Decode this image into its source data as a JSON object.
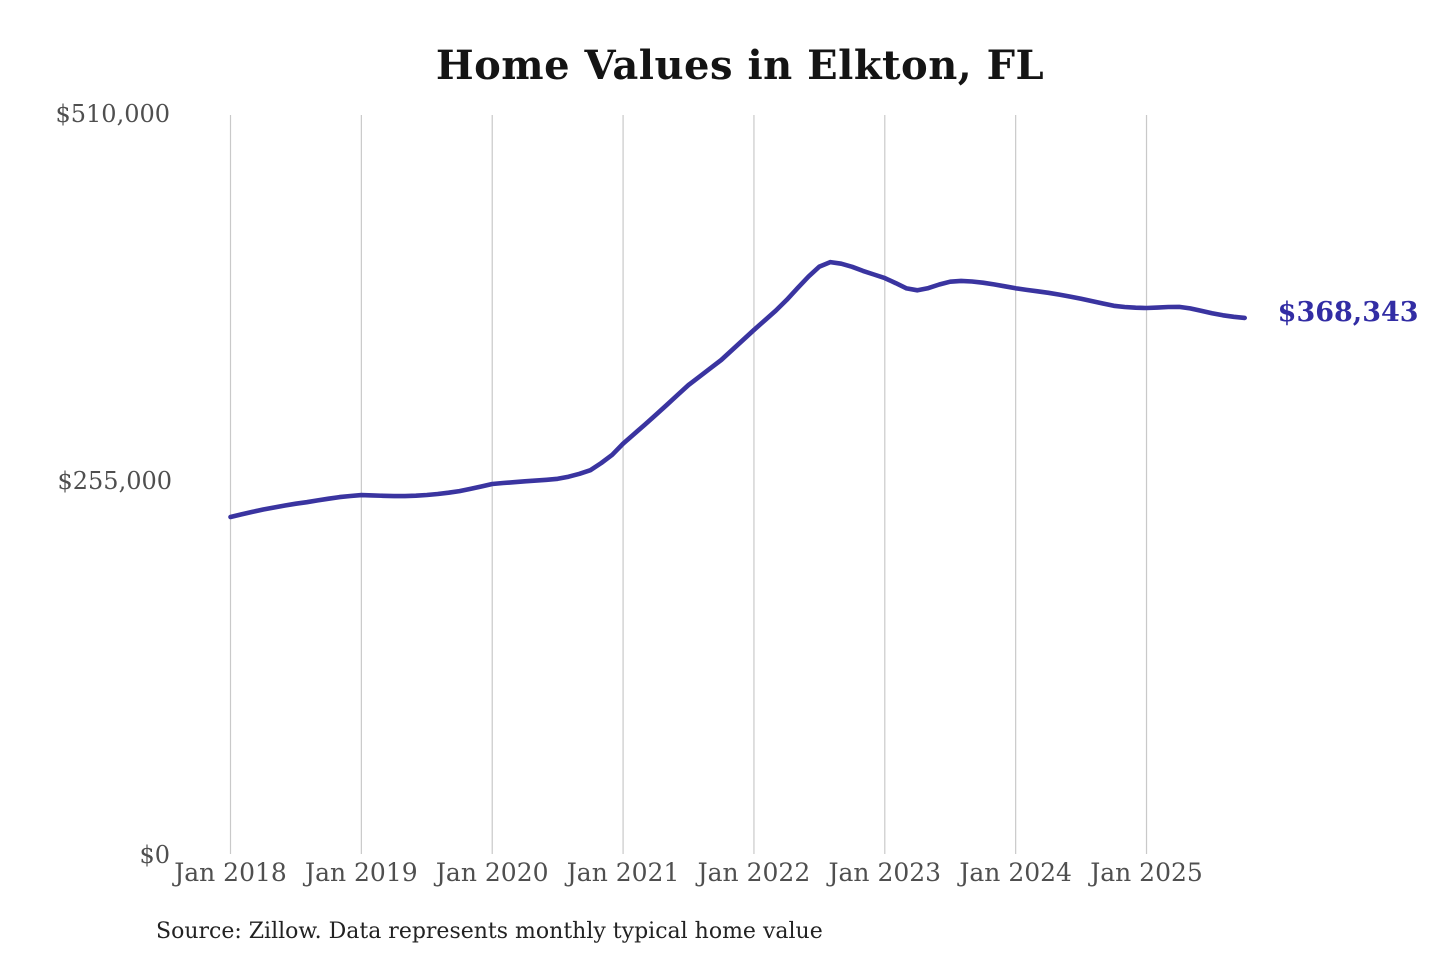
{
  "title": "Home Values in Elkton, FL",
  "source_note": "Source: Zillow. Data represents monthly typical home value",
  "colors": {
    "line": "#3a34a0",
    "end_label": "#322da4",
    "grid": "#c9c9c9",
    "axis_text": "#4f4f4f",
    "title_text": "#141414",
    "source_text": "#222222",
    "background": "#ffffff"
  },
  "chart_data": {
    "type": "line",
    "title": "Home Values in Elkton, FL",
    "unit": "USD",
    "xlabel": "",
    "ylabel": "",
    "ylim": [
      0,
      510000
    ],
    "grid": "vertical-only",
    "legend": "none",
    "x_tick_labels": [
      "Jan 2018",
      "Jan 2019",
      "Jan 2020",
      "Jan 2021",
      "Jan 2022",
      "Jan 2023",
      "Jan 2024",
      "Jan 2025"
    ],
    "y_tick_labels": [
      "$510,000",
      "$255,000",
      "$0"
    ],
    "y_tick_values": [
      510000,
      255000,
      0
    ],
    "end_label": "$368,343",
    "end_value": 368343,
    "series": [
      {
        "name": "Typical home value",
        "start_month": "2018-01",
        "end_month": "2025-10",
        "interval": "monthly",
        "values": [
          230000,
          231800,
          233500,
          235200,
          236600,
          238000,
          239200,
          240300,
          241500,
          242700,
          243800,
          244600,
          245200,
          245000,
          244700,
          244500,
          244500,
          244800,
          245300,
          246000,
          246900,
          248000,
          249500,
          251200,
          252900,
          253600,
          254200,
          254800,
          255300,
          255800,
          256500,
          258000,
          260000,
          262500,
          267500,
          273200,
          281000,
          287600,
          294200,
          300900,
          307800,
          314800,
          321700,
          327500,
          333300,
          339100,
          346000,
          353000,
          359900,
          366600,
          373400,
          380800,
          389000,
          397000,
          404000,
          407100,
          406000,
          403800,
          401000,
          398500,
          396000,
          392500,
          388800,
          387500,
          389000,
          391500,
          393500,
          394000,
          393600,
          392800,
          391600,
          390300,
          388900,
          387800,
          386800,
          385800,
          384500,
          383100,
          381600,
          380000,
          378300,
          376700,
          375900,
          375400,
          375200,
          375500,
          375900,
          376000,
          374900,
          373300,
          371600,
          370100,
          369100,
          368343
        ]
      }
    ]
  }
}
